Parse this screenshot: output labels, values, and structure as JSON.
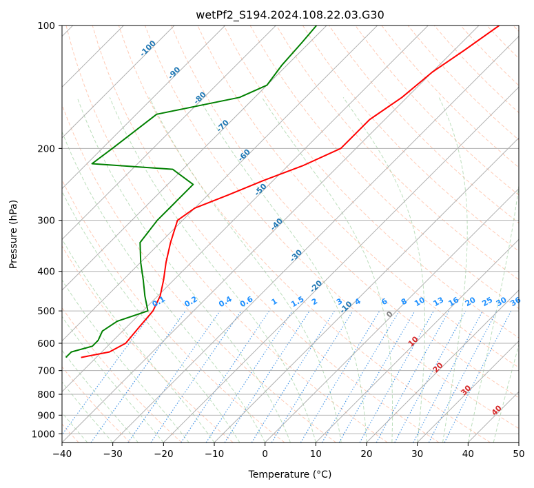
{
  "chart_data": {
    "type": "line",
    "title": "wetPf2_S194.2024.108.22.03.G30",
    "xlabel": "Temperature (°C)",
    "ylabel": "Pressure (hPa)",
    "xlim": [
      -40,
      50
    ],
    "ylim": [
      1050,
      100
    ],
    "y_scale": "log",
    "x_ticks": [
      -40,
      -30,
      -20,
      -10,
      0,
      10,
      20,
      30,
      40,
      50
    ],
    "y_ticks": [
      100,
      200,
      300,
      400,
      500,
      600,
      700,
      800,
      900,
      1000
    ],
    "grid": true,
    "legend": "none",
    "skew_t": true,
    "colors": {
      "temperature": "#ff0000",
      "dewpoint": "#008000",
      "isotherm_label": "#1f77b4",
      "dry_adiabat": "#ffa07a",
      "moist_adiabat": "#90c890",
      "mixing_ratio": "#1f7fe0",
      "mixing_ratio_label": "#1e90ff",
      "lcl_label": "#808080",
      "isotherm_low_label": "#d62728"
    },
    "series": [
      {
        "name": "",
        "color": "#ff0000",
        "points": [
          {
            "p": 650,
            "t": -53.0
          },
          {
            "p": 630,
            "t": -48.5
          },
          {
            "p": 600,
            "t": -47.0
          },
          {
            "p": 550,
            "t": -47.5
          },
          {
            "p": 500,
            "t": -48.0
          },
          {
            "p": 460,
            "t": -49.5
          },
          {
            "p": 420,
            "t": -52.0
          },
          {
            "p": 380,
            "t": -55.0
          },
          {
            "p": 340,
            "t": -58.0
          },
          {
            "p": 300,
            "t": -61.0
          },
          {
            "p": 280,
            "t": -60.0
          },
          {
            "p": 260,
            "t": -56.0
          },
          {
            "p": 240,
            "t": -52.0
          },
          {
            "p": 220,
            "t": -47.0
          },
          {
            "p": 200,
            "t": -43.0
          },
          {
            "p": 185,
            "t": -43.0
          },
          {
            "p": 170,
            "t": -43.0
          },
          {
            "p": 150,
            "t": -41.0
          },
          {
            "p": 130,
            "t": -40.0
          },
          {
            "p": 115,
            "t": -38.0
          },
          {
            "p": 100,
            "t": -36.0
          }
        ]
      },
      {
        "name": "",
        "color": "#008000",
        "points": [
          {
            "p": 650,
            "t": -56.0
          },
          {
            "p": 630,
            "t": -56.0
          },
          {
            "p": 610,
            "t": -53.0
          },
          {
            "p": 590,
            "t": -53.0
          },
          {
            "p": 560,
            "t": -54.0
          },
          {
            "p": 530,
            "t": -53.0
          },
          {
            "p": 500,
            "t": -49.0
          },
          {
            "p": 460,
            "t": -52.5
          },
          {
            "p": 420,
            "t": -56.0
          },
          {
            "p": 380,
            "t": -60.0
          },
          {
            "p": 340,
            "t": -64.0
          },
          {
            "p": 300,
            "t": -65.0
          },
          {
            "p": 270,
            "t": -65.0
          },
          {
            "p": 245,
            "t": -65.0
          },
          {
            "p": 225,
            "t": -72.0
          },
          {
            "p": 218,
            "t": -89.0
          },
          {
            "p": 200,
            "t": -88.0
          },
          {
            "p": 165,
            "t": -86.0
          },
          {
            "p": 150,
            "t": -73.0
          },
          {
            "p": 140,
            "t": -70.0
          },
          {
            "p": 125,
            "t": -71.0
          },
          {
            "p": 110,
            "t": -71.5
          },
          {
            "p": 100,
            "t": -72.0
          }
        ]
      }
    ],
    "isotherm_labels": [
      "-100",
      "-90",
      "-80",
      "-70",
      "-60",
      "-50",
      "-40",
      "-30",
      "-20",
      "-10"
    ],
    "isotherm_label_values": [
      -100,
      -90,
      -80,
      -70,
      -60,
      -50,
      -40,
      -30,
      -20,
      -10
    ],
    "low_isotherm_labels": [
      "0",
      "10",
      "20",
      "30",
      "40"
    ],
    "low_isotherm_label_values": [
      0,
      10,
      20,
      30,
      40
    ],
    "mixing_ratio_labels": [
      "0.1",
      "0.2",
      "0.4",
      "0.6",
      "1",
      "1.5",
      "2",
      "3",
      "4",
      "6",
      "8",
      "10",
      "13",
      "16",
      "20",
      "25",
      "30",
      "36"
    ],
    "mixing_ratio_values": [
      0.1,
      0.2,
      0.4,
      0.6,
      1,
      1.5,
      2,
      3,
      4,
      6,
      8,
      10,
      13,
      16,
      20,
      25,
      30,
      36
    ]
  }
}
